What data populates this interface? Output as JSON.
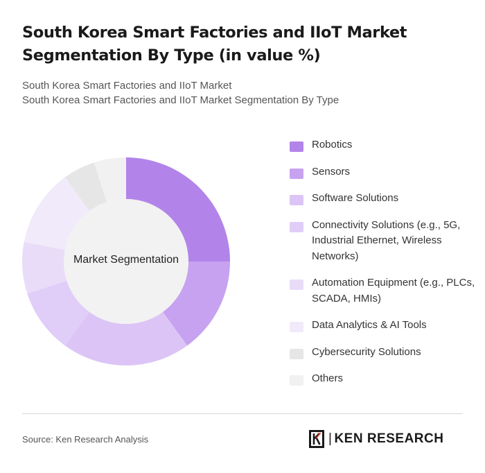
{
  "title": "South Korea Smart Factories and IIoT Market Segmentation By Type (in value %)",
  "subtitle_line1": "South Korea Smart Factories and IIoT Market",
  "subtitle_line2": "South Korea Smart Factories and IIoT Market Segmentation By Type",
  "center_label": "Market Segmentation",
  "source": "Source: Ken Research Analysis",
  "logo": {
    "icon": "ken-research-k-logo-icon",
    "text": "KEN RESEARCH"
  },
  "chart_data": {
    "type": "pie",
    "variant": "donut",
    "values_unit": "%",
    "legend_position": "right",
    "categories": [
      "Robotics",
      "Sensors",
      "Software Solutions",
      "Connectivity Solutions (e.g., 5G, Industrial Ethernet, Wireless Networks)",
      "Automation Equipment (e.g., PLCs, SCADA, HMIs)",
      "Data Analytics & AI Tools",
      "Cybersecurity Solutions",
      "Others"
    ],
    "values": [
      25,
      15,
      20,
      10,
      8,
      12,
      5,
      5
    ],
    "colors": [
      "#b284ea",
      "#c7a2f0",
      "#dcc5f6",
      "#e0cdf8",
      "#e9dcf9",
      "#f1eafa",
      "#e6e6e6",
      "#f1f1f1"
    ]
  }
}
